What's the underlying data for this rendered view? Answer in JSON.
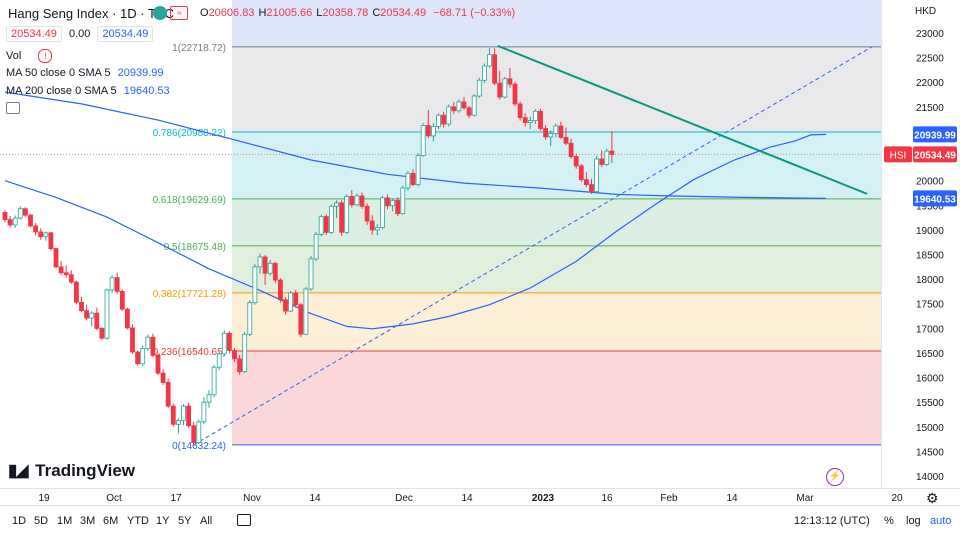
{
  "header": {
    "symbol": "Hang Seng Index · 1D · TVC",
    "ohlc": [
      {
        "k": "O",
        "v": "20606.83"
      },
      {
        "k": "H",
        "v": "21005.66"
      },
      {
        "k": "L",
        "v": "20358.78"
      },
      {
        "k": "C",
        "v": "20534.49"
      }
    ],
    "change": "−68.71 (−0.33%)",
    "price_left": "20534.49",
    "spread": "0.00",
    "price_right": "20534.49",
    "currency": "HKD"
  },
  "indicators": {
    "vol_label": "Vol",
    "vol_warn": "!",
    "ma50_label": "MA 50 close 0 SMA 5",
    "ma50_value": "20939.99",
    "ma200_label": "MA 200 close 0 SMA 5",
    "ma200_value": "19640.53"
  },
  "bottom_bar": {
    "timeframes": [
      "1D",
      "5D",
      "1M",
      "3M",
      "6M",
      "YTD",
      "1Y",
      "5Y",
      "All"
    ],
    "time": "12:13:12 (UTC)",
    "percent": "%",
    "log": "log",
    "auto": "auto"
  },
  "brand": "TradingView",
  "colors": {
    "up": "#26a69a",
    "down": "#f23645",
    "ma50": "#2962ff",
    "ma200": "#2962ff",
    "trend": "#089981"
  },
  "chart_data": {
    "type": "candlestick",
    "title": "Hang Seng Index · 1D · TVC",
    "y_ticks": [
      14000,
      14500,
      15000,
      15500,
      16000,
      16500,
      17000,
      17500,
      18000,
      18500,
      19000,
      19500,
      20000,
      20500,
      21000,
      21500,
      22000,
      22500,
      23000
    ],
    "y_range": [
      14000,
      23200
    ],
    "x_labels": [
      "19",
      "Oct",
      "17",
      "Nov",
      "14",
      "Dec",
      "14",
      "2023",
      "16",
      "Feb",
      "14",
      "Mar",
      "20"
    ],
    "price_tags": [
      {
        "label": "",
        "value": "20939.99",
        "y": 20939.99,
        "color": "#2962ff"
      },
      {
        "label": "HSI",
        "value": "20534.49",
        "y": 20534.49,
        "color": "#f23645"
      },
      {
        "label": "",
        "value": "19640.53",
        "y": 19640.53,
        "color": "#2962ff"
      }
    ],
    "fib_levels": [
      {
        "label": "1(22718.72)",
        "value": 22718.72,
        "fill": "#e9e9eb",
        "line": "#787b86"
      },
      {
        "label": "0.786(20988.22)",
        "value": 20988.22,
        "fill": "#d4f1f6",
        "line": "#00bcd4"
      },
      {
        "label": "0.618(19629.69)",
        "value": 19629.69,
        "fill": "#dcefe4",
        "line": "#4caf50"
      },
      {
        "label": "0.5(18675.48)",
        "value": 18675.48,
        "fill": "#e0f0dc",
        "line": "#4caf50"
      },
      {
        "label": "0.382(17721.28)",
        "value": 17721.28,
        "fill": "#fdefd5",
        "line": "#ff9800"
      },
      {
        "label": "0.236(16540.65)",
        "value": 16540.65,
        "fill": "#fbd7da",
        "line": "#f23645"
      },
      {
        "label": "0(14632.24)",
        "value": 14632.24,
        "fill": null,
        "line": "#2962ff"
      }
    ],
    "candles": [
      [
        19356,
        19400,
        19160,
        19210
      ],
      [
        19210,
        19280,
        19050,
        19100
      ],
      [
        19100,
        19290,
        19040,
        19240
      ],
      [
        19240,
        19480,
        19210,
        19430
      ],
      [
        19430,
        19460,
        19260,
        19300
      ],
      [
        19300,
        19320,
        19050,
        19080
      ],
      [
        19080,
        19140,
        18890,
        18960
      ],
      [
        18960,
        19030,
        18800,
        18860
      ],
      [
        18860,
        18970,
        18780,
        18940
      ],
      [
        18940,
        18960,
        18580,
        18620
      ],
      [
        18620,
        18640,
        18220,
        18250
      ],
      [
        18250,
        18370,
        18080,
        18130
      ],
      [
        18130,
        18280,
        18030,
        18090
      ],
      [
        18090,
        18180,
        17900,
        17940
      ],
      [
        17940,
        17970,
        17490,
        17530
      ],
      [
        17530,
        17640,
        17330,
        17360
      ],
      [
        17360,
        17480,
        17160,
        17210
      ],
      [
        17210,
        17350,
        17040,
        17310
      ],
      [
        17310,
        17420,
        16960,
        17000
      ],
      [
        17000,
        17020,
        16760,
        16800
      ],
      [
        16800,
        17810,
        16770,
        17780
      ],
      [
        17780,
        18080,
        17720,
        18030
      ],
      [
        18030,
        18130,
        17700,
        17750
      ],
      [
        17750,
        17790,
        17350,
        17390
      ],
      [
        17390,
        17420,
        16980,
        17010
      ],
      [
        17010,
        17080,
        16480,
        16520
      ],
      [
        16520,
        16550,
        16250,
        16280
      ],
      [
        16280,
        16650,
        16230,
        16590
      ],
      [
        16590,
        16870,
        16540,
        16820
      ],
      [
        16820,
        16890,
        16420,
        16450
      ],
      [
        16450,
        16490,
        16050,
        16090
      ],
      [
        16090,
        16170,
        15850,
        15900
      ],
      [
        15900,
        15980,
        15380,
        15420
      ],
      [
        15420,
        15470,
        15000,
        15050
      ],
      [
        15050,
        15170,
        14860,
        15130
      ],
      [
        15130,
        15460,
        15030,
        15420
      ],
      [
        15420,
        15490,
        14980,
        15020
      ],
      [
        15020,
        15100,
        14630,
        14680
      ],
      [
        14680,
        15150,
        14650,
        15100
      ],
      [
        15100,
        15600,
        15050,
        15500
      ],
      [
        15500,
        15740,
        15390,
        15650
      ],
      [
        15650,
        16260,
        15600,
        16210
      ],
      [
        16210,
        16530,
        16150,
        16480
      ],
      [
        16480,
        16960,
        16430,
        16900
      ],
      [
        16900,
        16940,
        16490,
        16550
      ],
      [
        16550,
        16600,
        16320,
        16380
      ],
      [
        16380,
        16460,
        16060,
        16120
      ],
      [
        16120,
        16930,
        16090,
        16880
      ],
      [
        16880,
        17570,
        16840,
        17520
      ],
      [
        17520,
        18310,
        17480,
        18250
      ],
      [
        18250,
        18520,
        18110,
        18450
      ],
      [
        18450,
        18490,
        17880,
        18120
      ],
      [
        18120,
        18390,
        18070,
        18320
      ],
      [
        18320,
        18350,
        17920,
        17980
      ],
      [
        17980,
        18020,
        17520,
        17580
      ],
      [
        17580,
        17630,
        17280,
        17350
      ],
      [
        17350,
        17760,
        17330,
        17720
      ],
      [
        17720,
        17780,
        17420,
        17480
      ],
      [
        17480,
        17520,
        16820,
        16880
      ],
      [
        16880,
        17840,
        16860,
        17800
      ],
      [
        17800,
        18470,
        17760,
        18410
      ],
      [
        18410,
        18960,
        18370,
        18910
      ],
      [
        18910,
        19310,
        18870,
        19270
      ],
      [
        19270,
        19320,
        18900,
        18950
      ],
      [
        18950,
        19520,
        18920,
        19480
      ],
      [
        19480,
        19600,
        19240,
        19550
      ],
      [
        19550,
        19600,
        18880,
        18950
      ],
      [
        18950,
        19720,
        18920,
        19680
      ],
      [
        19680,
        19810,
        19450,
        19510
      ],
      [
        19510,
        19740,
        19480,
        19690
      ],
      [
        19690,
        19760,
        19430,
        19480
      ],
      [
        19480,
        19540,
        19100,
        19180
      ],
      [
        19180,
        19300,
        18900,
        19000
      ],
      [
        19000,
        19120,
        18890,
        19050
      ],
      [
        19050,
        19700,
        19010,
        19650
      ],
      [
        19650,
        19720,
        19420,
        19490
      ],
      [
        19490,
        19640,
        19380,
        19600
      ],
      [
        19600,
        19660,
        19280,
        19330
      ],
      [
        19330,
        19900,
        19310,
        19850
      ],
      [
        19850,
        20200,
        19800,
        20150
      ],
      [
        20150,
        20230,
        19890,
        19920
      ],
      [
        19920,
        20560,
        19880,
        20510
      ],
      [
        20510,
        21170,
        20480,
        21120
      ],
      [
        21120,
        21440,
        20860,
        20910
      ],
      [
        20910,
        21170,
        20800,
        21100
      ],
      [
        21100,
        21370,
        21050,
        21330
      ],
      [
        21330,
        21400,
        21080,
        21150
      ],
      [
        21150,
        21550,
        21100,
        21500
      ],
      [
        21500,
        21600,
        21350,
        21420
      ],
      [
        21420,
        21650,
        21380,
        21600
      ],
      [
        21600,
        21700,
        21440,
        21480
      ],
      [
        21480,
        21520,
        21270,
        21330
      ],
      [
        21330,
        21760,
        21300,
        21720
      ],
      [
        21720,
        22090,
        21680,
        22040
      ],
      [
        22040,
        22380,
        21980,
        22330
      ],
      [
        22330,
        22700,
        22300,
        22560
      ],
      [
        22560,
        22690,
        21940,
        21980
      ],
      [
        21980,
        22230,
        21650,
        21700
      ],
      [
        21700,
        22110,
        21670,
        22070
      ],
      [
        22070,
        22290,
        21890,
        21960
      ],
      [
        21960,
        22010,
        21510,
        21560
      ],
      [
        21560,
        21610,
        21220,
        21280
      ],
      [
        21280,
        21370,
        21100,
        21180
      ],
      [
        21180,
        21300,
        21050,
        21220
      ],
      [
        21220,
        21450,
        21150,
        21410
      ],
      [
        21410,
        21460,
        21020,
        21060
      ],
      [
        21060,
        21130,
        20830,
        20890
      ],
      [
        20890,
        21020,
        20700,
        20960
      ],
      [
        20960,
        21160,
        20880,
        21110
      ],
      [
        21110,
        21200,
        20840,
        20880
      ],
      [
        20880,
        21080,
        20720,
        20760
      ],
      [
        20760,
        20850,
        20440,
        20490
      ],
      [
        20490,
        20550,
        20240,
        20300
      ],
      [
        20300,
        20340,
        19980,
        20020
      ],
      [
        20020,
        20170,
        19870,
        19920
      ],
      [
        19920,
        20040,
        19730,
        19780
      ],
      [
        19780,
        20500,
        19740,
        20440
      ],
      [
        20440,
        20620,
        20280,
        20330
      ],
      [
        20330,
        20650,
        20300,
        20600
      ],
      [
        20600,
        21005,
        20358,
        20534
      ]
    ],
    "ma50": [
      [
        0,
        20000
      ],
      [
        10,
        19660
      ],
      [
        20,
        19260
      ],
      [
        30,
        18740
      ],
      [
        40,
        18210
      ],
      [
        50,
        17770
      ],
      [
        60,
        17300
      ],
      [
        67,
        17040
      ],
      [
        72,
        16990
      ],
      [
        80,
        17090
      ],
      [
        87,
        17240
      ],
      [
        95,
        17480
      ],
      [
        103,
        17820
      ],
      [
        112,
        18360
      ],
      [
        120,
        18980
      ],
      [
        128,
        19550
      ],
      [
        135,
        20020
      ],
      [
        143,
        20420
      ],
      [
        150,
        20680
      ],
      [
        155,
        20810
      ],
      [
        158,
        20930
      ],
      [
        161,
        20940
      ]
    ],
    "ma200": [
      [
        0,
        21800
      ],
      [
        15,
        21560
      ],
      [
        30,
        21230
      ],
      [
        45,
        20830
      ],
      [
        60,
        20420
      ],
      [
        75,
        20130
      ],
      [
        90,
        19950
      ],
      [
        105,
        19850
      ],
      [
        120,
        19720
      ],
      [
        130,
        19690
      ],
      [
        145,
        19660
      ],
      [
        161,
        19640
      ]
    ],
    "trendline": [
      [
        96,
        22700
      ],
      [
        161,
        19630
      ]
    ],
    "dashed_line": [
      [
        37,
        14632
      ],
      [
        170,
        22720
      ]
    ]
  }
}
